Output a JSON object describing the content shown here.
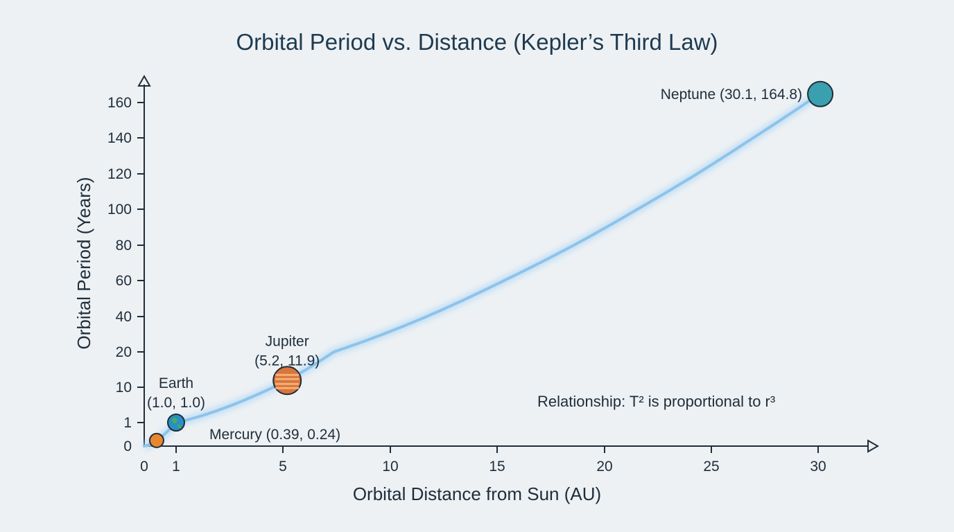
{
  "chart_data": {
    "type": "scatter",
    "title": "Orbital Period vs. Distance (Kepler’s Third Law)",
    "xlabel": "Orbital Distance from Sun (AU)",
    "ylabel": "Orbital Period (Years)",
    "x_ticks": [
      0,
      1,
      5,
      10,
      15,
      20,
      25,
      30
    ],
    "y_ticks": [
      0,
      1,
      10,
      20,
      40,
      60,
      80,
      100,
      120,
      140,
      160
    ],
    "xlim": [
      0,
      32
    ],
    "ylim": [
      0,
      170
    ],
    "grid": false,
    "points": [
      {
        "name": "Mercury",
        "x": 0.39,
        "y": 0.24,
        "label": "Mercury (0.39, 0.24)",
        "color": "#e8872e"
      },
      {
        "name": "Earth",
        "x": 1.0,
        "y": 1.0,
        "label_name": "Earth",
        "label_coords": "(1.0, 1.0)",
        "color": "#2a8fc4"
      },
      {
        "name": "Jupiter",
        "x": 5.2,
        "y": 11.9,
        "label_name": "Jupiter",
        "label_coords": "(5.2, 11.9)",
        "color": "#d9743a"
      },
      {
        "name": "Neptune",
        "x": 30.1,
        "y": 164.8,
        "label": "Neptune (30.1, 164.8)",
        "color": "#3a9fae"
      }
    ],
    "curve": {
      "relation": "T = r^1.5",
      "color": "#8ec3ea"
    },
    "annotation": "Relationship: T² is proportional to r³"
  }
}
